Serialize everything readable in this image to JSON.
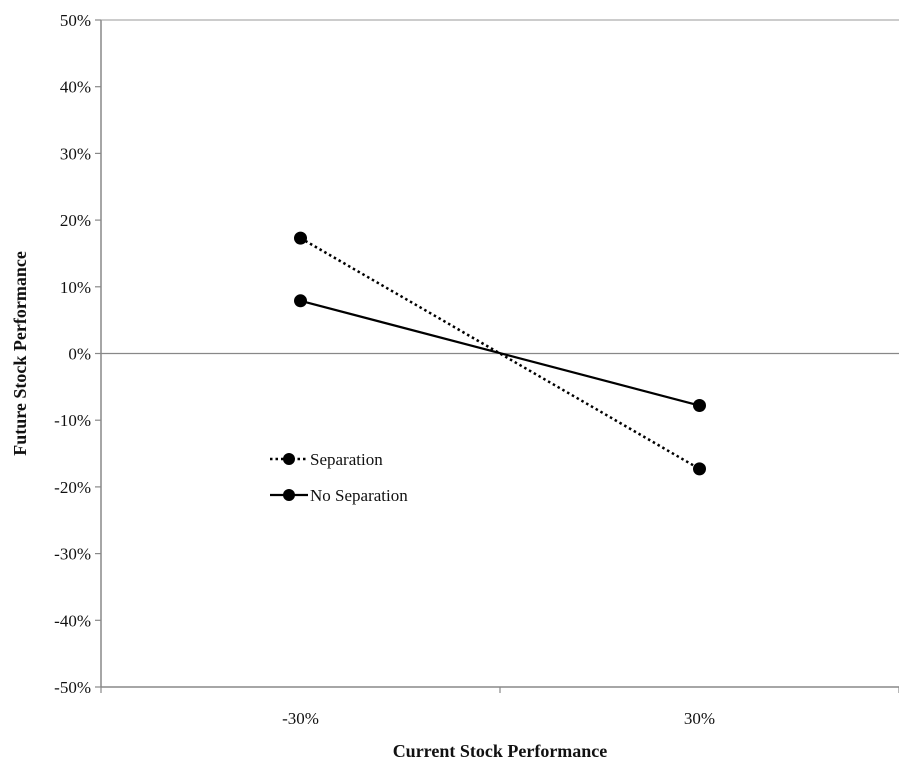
{
  "chart_data": {
    "type": "line",
    "title": "",
    "xlabel": "Current Stock Performance",
    "ylabel": "Future Stock Performance",
    "categories": [
      "-30%",
      "30%"
    ],
    "y_ticks": [
      "50%",
      "40%",
      "30%",
      "20%",
      "10%",
      "0%",
      "-10%",
      "-20%",
      "-30%",
      "-40%",
      "-50%"
    ],
    "y_tick_values": [
      50,
      40,
      30,
      20,
      10,
      0,
      -10,
      -20,
      -30,
      -40,
      -50
    ],
    "ylim": [
      -50,
      50
    ],
    "grid": false,
    "zero_line": true,
    "legend_position": "left-center",
    "series": [
      {
        "name": "Separation",
        "values": [
          17.3,
          -17.3
        ],
        "style": "dotted",
        "color": "#000000"
      },
      {
        "name": "No Separation",
        "values": [
          7.9,
          -7.8
        ],
        "style": "solid",
        "color": "#000000"
      }
    ]
  }
}
